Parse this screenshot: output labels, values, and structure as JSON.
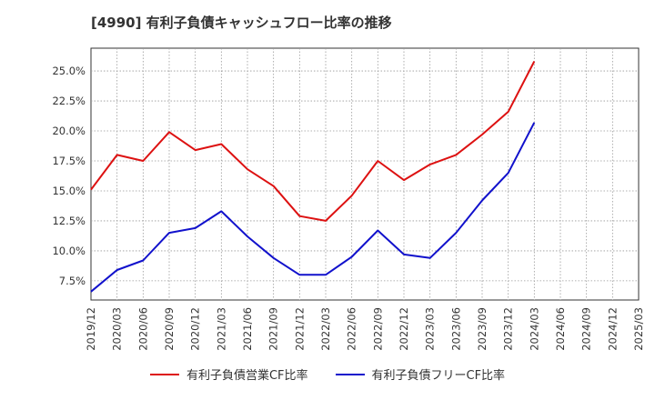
{
  "chart_data": {
    "type": "line",
    "title": "[4990]  有利子負債キャッシュフロー比率の推移",
    "xlabel": "",
    "ylabel": "",
    "ylim": [
      5.9,
      26.9
    ],
    "y_ticks": [
      "7.5%",
      "10.0%",
      "12.5%",
      "15.0%",
      "17.5%",
      "20.0%",
      "22.5%",
      "25.0%"
    ],
    "y_tick_values": [
      7.5,
      10.0,
      12.5,
      15.0,
      17.5,
      20.0,
      22.5,
      25.0
    ],
    "grid": true,
    "legend_position": "bottom",
    "categories": [
      "2019/12",
      "2020/03",
      "2020/06",
      "2020/09",
      "2020/12",
      "2021/03",
      "2021/06",
      "2021/09",
      "2021/12",
      "2022/03",
      "2022/06",
      "2022/09",
      "2022/12",
      "2023/03",
      "2023/06",
      "2023/09",
      "2023/12",
      "2024/03",
      "2024/06",
      "2024/09",
      "2024/12",
      "2025/03"
    ],
    "series": [
      {
        "name": "有利子負債営業CF比率",
        "color": "#dd1111",
        "values": [
          15.1,
          18.0,
          17.5,
          19.9,
          18.4,
          18.9,
          16.8,
          15.4,
          12.9,
          12.5,
          14.6,
          17.5,
          15.9,
          17.2,
          18.0,
          19.7,
          21.6,
          25.8,
          null,
          null,
          null,
          null
        ]
      },
      {
        "name": "有利子負債フリーCF比率",
        "color": "#1111cc",
        "values": [
          6.6,
          8.4,
          9.2,
          11.5,
          11.9,
          13.3,
          11.2,
          9.4,
          8.0,
          8.0,
          9.5,
          11.7,
          9.7,
          9.4,
          11.5,
          14.2,
          16.5,
          20.7,
          null,
          null,
          null,
          null
        ]
      }
    ]
  }
}
